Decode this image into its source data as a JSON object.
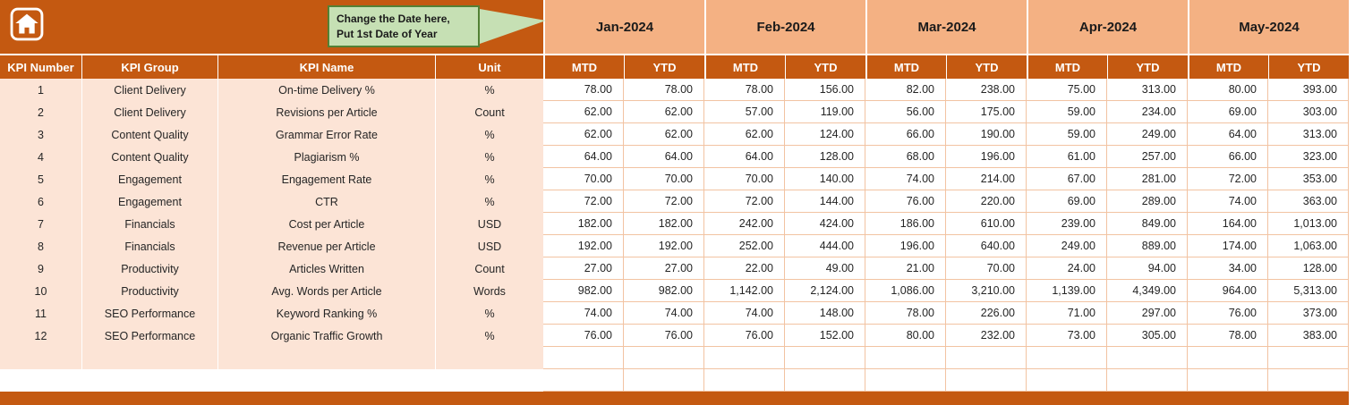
{
  "callout": {
    "line1": "Change the Date here,",
    "line2": "Put 1st Date of Year"
  },
  "colors": {
    "header_orange": "#C45911",
    "month_salmon": "#F4B183",
    "label_peach": "#FCE4D6",
    "callout_green": "#C6E0B4",
    "callout_border_green": "#538135",
    "gridline": "#F2C3A2"
  },
  "table": {
    "months": [
      "Jan-2024",
      "Feb-2024",
      "Mar-2024",
      "Apr-2024",
      "May-2024"
    ],
    "sub_headers": [
      "MTD",
      "YTD"
    ],
    "label_headers": [
      "KPI Number",
      "KPI Group",
      "KPI Name",
      "Unit"
    ],
    "rows": [
      {
        "number": "1",
        "group": "Client Delivery",
        "name": "On-time Delivery %",
        "unit": "%",
        "values": [
          "78.00",
          "78.00",
          "78.00",
          "156.00",
          "82.00",
          "238.00",
          "75.00",
          "313.00",
          "80.00",
          "393.00"
        ]
      },
      {
        "number": "2",
        "group": "Client Delivery",
        "name": "Revisions per Article",
        "unit": "Count",
        "values": [
          "62.00",
          "62.00",
          "57.00",
          "119.00",
          "56.00",
          "175.00",
          "59.00",
          "234.00",
          "69.00",
          "303.00"
        ]
      },
      {
        "number": "3",
        "group": "Content Quality",
        "name": "Grammar Error Rate",
        "unit": "%",
        "values": [
          "62.00",
          "62.00",
          "62.00",
          "124.00",
          "66.00",
          "190.00",
          "59.00",
          "249.00",
          "64.00",
          "313.00"
        ]
      },
      {
        "number": "4",
        "group": "Content Quality",
        "name": "Plagiarism %",
        "unit": "%",
        "values": [
          "64.00",
          "64.00",
          "64.00",
          "128.00",
          "68.00",
          "196.00",
          "61.00",
          "257.00",
          "66.00",
          "323.00"
        ]
      },
      {
        "number": "5",
        "group": "Engagement",
        "name": "Engagement Rate",
        "unit": "%",
        "values": [
          "70.00",
          "70.00",
          "70.00",
          "140.00",
          "74.00",
          "214.00",
          "67.00",
          "281.00",
          "72.00",
          "353.00"
        ]
      },
      {
        "number": "6",
        "group": "Engagement",
        "name": "CTR",
        "unit": "%",
        "values": [
          "72.00",
          "72.00",
          "72.00",
          "144.00",
          "76.00",
          "220.00",
          "69.00",
          "289.00",
          "74.00",
          "363.00"
        ]
      },
      {
        "number": "7",
        "group": "Financials",
        "name": "Cost per Article",
        "unit": "USD",
        "values": [
          "182.00",
          "182.00",
          "242.00",
          "424.00",
          "186.00",
          "610.00",
          "239.00",
          "849.00",
          "164.00",
          "1,013.00"
        ]
      },
      {
        "number": "8",
        "group": "Financials",
        "name": "Revenue per Article",
        "unit": "USD",
        "values": [
          "192.00",
          "192.00",
          "252.00",
          "444.00",
          "196.00",
          "640.00",
          "249.00",
          "889.00",
          "174.00",
          "1,063.00"
        ]
      },
      {
        "number": "9",
        "group": "Productivity",
        "name": "Articles Written",
        "unit": "Count",
        "values": [
          "27.00",
          "27.00",
          "22.00",
          "49.00",
          "21.00",
          "70.00",
          "24.00",
          "94.00",
          "34.00",
          "128.00"
        ]
      },
      {
        "number": "10",
        "group": "Productivity",
        "name": "Avg. Words per Article",
        "unit": "Words",
        "values": [
          "982.00",
          "982.00",
          "1,142.00",
          "2,124.00",
          "1,086.00",
          "3,210.00",
          "1,139.00",
          "4,349.00",
          "964.00",
          "5,313.00"
        ]
      },
      {
        "number": "11",
        "group": "SEO Performance",
        "name": "Keyword Ranking %",
        "unit": "%",
        "values": [
          "74.00",
          "74.00",
          "74.00",
          "148.00",
          "78.00",
          "226.00",
          "71.00",
          "297.00",
          "76.00",
          "373.00"
        ]
      },
      {
        "number": "12",
        "group": "SEO Performance",
        "name": "Organic Traffic Growth",
        "unit": "%",
        "values": [
          "76.00",
          "76.00",
          "76.00",
          "152.00",
          "80.00",
          "232.00",
          "73.00",
          "305.00",
          "78.00",
          "383.00"
        ]
      }
    ],
    "empty_rows": [
      {
        "label_style": "peach"
      },
      {
        "label_style": "plain"
      }
    ]
  }
}
